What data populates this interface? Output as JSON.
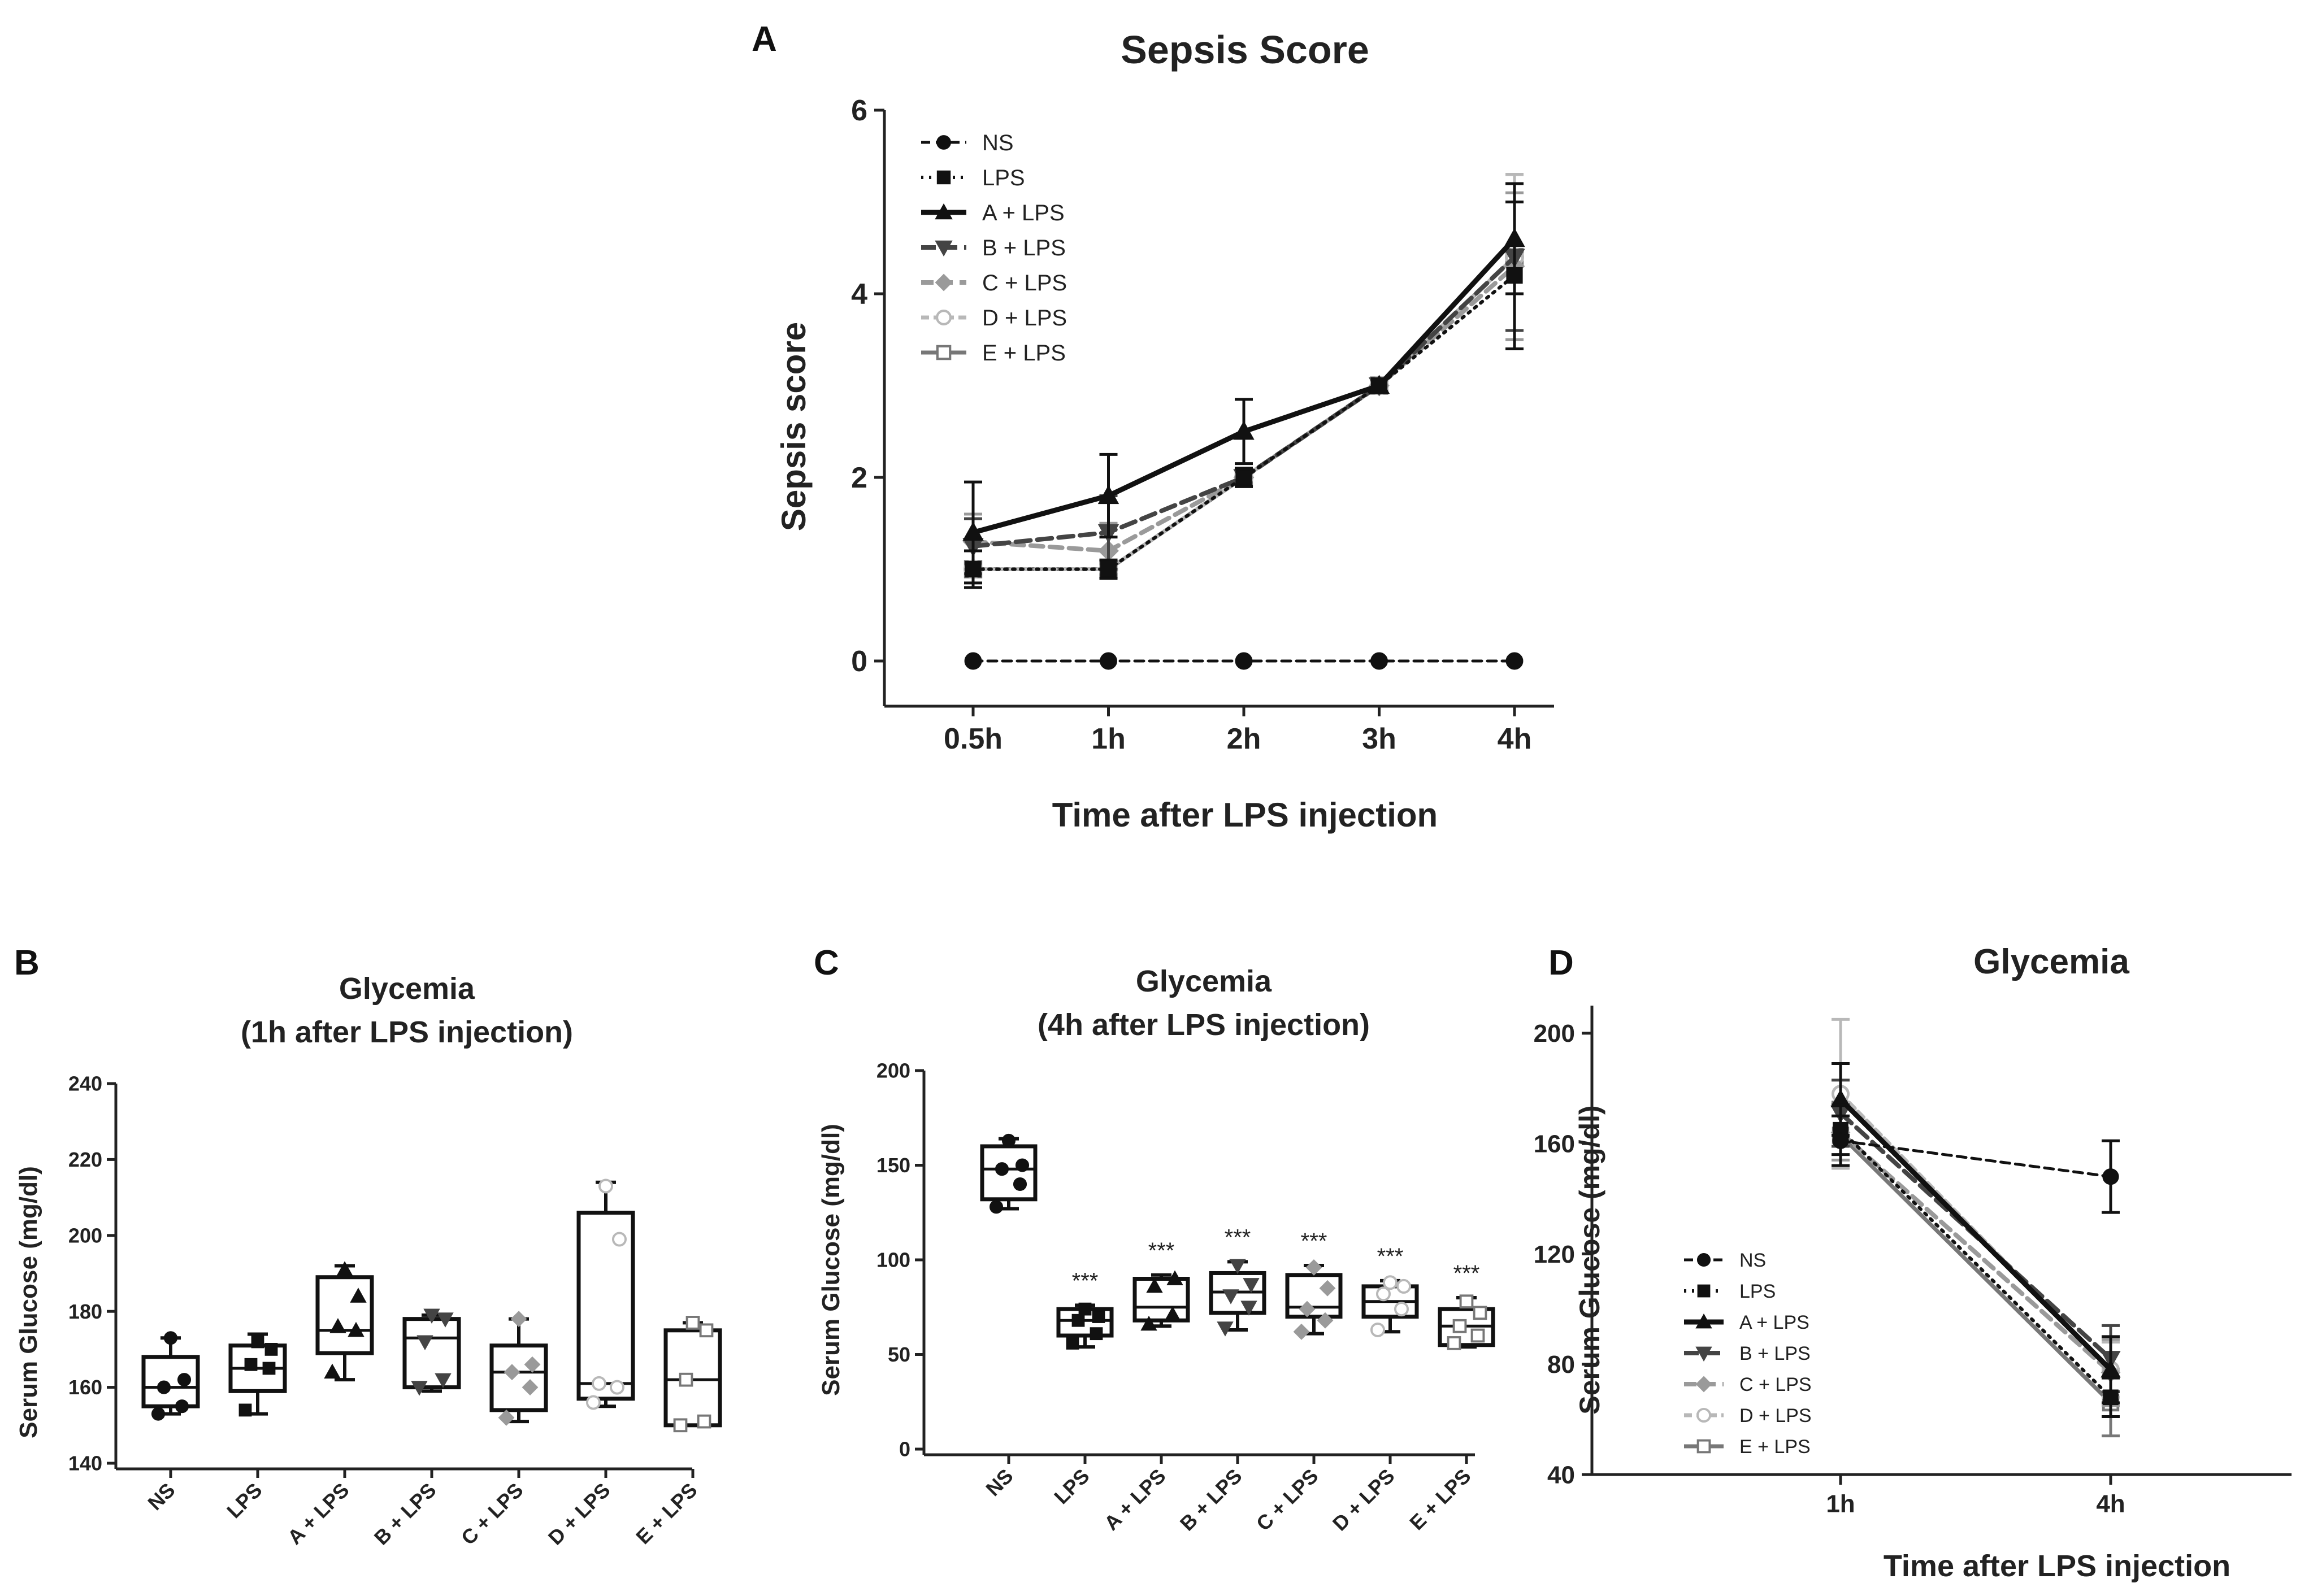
{
  "panels": {
    "A": {
      "letter": "A"
    },
    "B": {
      "letter": "B"
    },
    "C": {
      "letter": "C"
    },
    "D": {
      "letter": "D"
    }
  },
  "colors": {
    "NS": "#111111",
    "LPS": "#111111",
    "A + LPS": "#111111",
    "B + LPS": "#444444",
    "C + LPS": "#9a9a9a",
    "D + LPS": "#b8b8b8",
    "E + LPS": "#777777"
  },
  "chart_data": [
    {
      "id": "A",
      "type": "line",
      "title": "Sepsis Score",
      "xlabel": "Time after LPS injection",
      "ylabel": "Sepsis score",
      "categories": [
        "0.5h",
        "1h",
        "2h",
        "3h",
        "4h"
      ],
      "ylim": [
        0,
        6
      ],
      "yticks": [
        0,
        2,
        4,
        6
      ],
      "legend_position": "top-left",
      "series": [
        {
          "name": "NS",
          "marker": "circle",
          "values": [
            0,
            0,
            0,
            0,
            0
          ],
          "errors": [
            0,
            0,
            0,
            0,
            0
          ]
        },
        {
          "name": "LPS",
          "marker": "square",
          "values": [
            1.0,
            1.0,
            2.0,
            3.0,
            4.2
          ],
          "errors": [
            0.2,
            0.1,
            0.1,
            0,
            0.8
          ]
        },
        {
          "name": "A + LPS",
          "marker": "triangle-up",
          "values": [
            1.4,
            1.8,
            2.5,
            3.0,
            4.6
          ],
          "errors": [
            0.55,
            0.45,
            0.35,
            0,
            0.6
          ]
        },
        {
          "name": "B + LPS",
          "marker": "triangle-down",
          "values": [
            1.25,
            1.4,
            2.0,
            3.0,
            4.4
          ],
          "errors": [
            0.3,
            0.4,
            0.1,
            0,
            0.8
          ]
        },
        {
          "name": "C + LPS",
          "marker": "diamond",
          "values": [
            1.3,
            1.2,
            2.0,
            3.0,
            4.3
          ],
          "errors": [
            0.3,
            0.3,
            0.1,
            0,
            0.8
          ]
        },
        {
          "name": "D + LPS",
          "marker": "circle-open",
          "values": [
            1.0,
            1.0,
            2.0,
            3.0,
            4.4
          ],
          "errors": [
            0.2,
            0.1,
            0.1,
            0,
            0.9
          ]
        },
        {
          "name": "E + LPS",
          "marker": "square-open",
          "values": [
            1.0,
            1.0,
            2.0,
            3.0,
            4.4
          ],
          "errors": [
            0.2,
            0.1,
            0.1,
            0,
            0.9
          ]
        }
      ]
    },
    {
      "id": "B",
      "type": "box",
      "title": "Glycemia",
      "subtitle": "(1h after LPS injection)",
      "ylabel": "Serum Glucose (mg/dl)",
      "ylim": [
        140,
        240
      ],
      "yticks": [
        140,
        160,
        180,
        200,
        220,
        240
      ],
      "categories": [
        "NS",
        "LPS",
        "A + LPS",
        "B + LPS",
        "C + LPS",
        "D + LPS",
        "E + LPS"
      ],
      "boxes": [
        {
          "name": "NS",
          "marker": "circle",
          "min": 153,
          "q1": 155,
          "median": 160,
          "q3": 168,
          "max": 173,
          "points": [
            153,
            155,
            160,
            162,
            173
          ]
        },
        {
          "name": "LPS",
          "marker": "square",
          "min": 153,
          "q1": 159,
          "median": 165,
          "q3": 171,
          "max": 174,
          "points": [
            154,
            165,
            166,
            170,
            172
          ]
        },
        {
          "name": "A + LPS",
          "marker": "triangle-up",
          "min": 162,
          "q1": 169,
          "median": 175,
          "q3": 189,
          "max": 192,
          "points": [
            164,
            175,
            176,
            184,
            191
          ]
        },
        {
          "name": "B + LPS",
          "marker": "triangle-down",
          "min": 159,
          "q1": 160,
          "median": 173,
          "q3": 178,
          "max": 179,
          "points": [
            160,
            162,
            172,
            178,
            179
          ]
        },
        {
          "name": "C + LPS",
          "marker": "diamond",
          "min": 151,
          "q1": 154,
          "median": 164,
          "q3": 171,
          "max": 178,
          "points": [
            152,
            160,
            164,
            166,
            178
          ]
        },
        {
          "name": "D + LPS",
          "marker": "circle-open",
          "min": 155,
          "q1": 157,
          "median": 161,
          "q3": 206,
          "max": 214,
          "points": [
            156,
            160,
            161,
            199,
            213
          ]
        },
        {
          "name": "E + LPS",
          "marker": "square-open",
          "min": 150,
          "q1": 150,
          "median": 162,
          "q3": 175,
          "max": 177,
          "points": [
            150,
            151,
            162,
            175,
            177
          ]
        }
      ]
    },
    {
      "id": "C",
      "type": "box",
      "title": "Glycemia",
      "subtitle": "(4h after LPS injection)",
      "ylabel": "Serum Glucose (mg/dl)",
      "ylim": [
        0,
        200
      ],
      "yticks": [
        0,
        50,
        100,
        150,
        200
      ],
      "categories": [
        "NS",
        "LPS",
        "A + LPS",
        "B + LPS",
        "C + LPS",
        "D + LPS",
        "E + LPS"
      ],
      "significance": [
        "",
        "***",
        "***",
        "***",
        "***",
        "***",
        "***"
      ],
      "boxes": [
        {
          "name": "NS",
          "marker": "circle",
          "min": 127,
          "q1": 132,
          "median": 148,
          "q3": 160,
          "max": 164,
          "points": [
            128,
            140,
            148,
            150,
            163
          ]
        },
        {
          "name": "LPS",
          "marker": "square",
          "min": 54,
          "q1": 60,
          "median": 68,
          "q3": 74,
          "max": 76,
          "points": [
            56,
            61,
            68,
            70,
            74
          ]
        },
        {
          "name": "A + LPS",
          "marker": "triangle-up",
          "min": 65,
          "q1": 68,
          "median": 75,
          "q3": 90,
          "max": 92,
          "points": [
            66,
            71,
            86,
            90
          ]
        },
        {
          "name": "B + LPS",
          "marker": "triangle-down",
          "min": 63,
          "q1": 72,
          "median": 83,
          "q3": 93,
          "max": 99,
          "points": [
            64,
            75,
            81,
            87,
            97
          ]
        },
        {
          "name": "C + LPS",
          "marker": "diamond",
          "min": 61,
          "q1": 70,
          "median": 75,
          "q3": 92,
          "max": 97,
          "points": [
            62,
            68,
            74,
            85,
            96
          ]
        },
        {
          "name": "D + LPS",
          "marker": "circle-open",
          "min": 62,
          "q1": 70,
          "median": 78,
          "q3": 86,
          "max": 89,
          "points": [
            63,
            74,
            82,
            86,
            88
          ]
        },
        {
          "name": "E + LPS",
          "marker": "square-open",
          "min": 54,
          "q1": 55,
          "median": 65,
          "q3": 74,
          "max": 80,
          "points": [
            56,
            60,
            65,
            72,
            78
          ]
        }
      ]
    },
    {
      "id": "D",
      "type": "line",
      "title": "Glycemia",
      "xlabel": "Time after LPS injection",
      "ylabel": "Serum Glucose (mg/dl)",
      "categories": [
        "1h",
        "4h"
      ],
      "ylim": [
        40,
        210
      ],
      "yticks": [
        40,
        80,
        120,
        160,
        200
      ],
      "legend_position": "bottom-left",
      "series": [
        {
          "name": "NS",
          "marker": "circle",
          "values": [
            161,
            148
          ],
          "errors": [
            9,
            13
          ]
        },
        {
          "name": "LPS",
          "marker": "square",
          "values": [
            165,
            68
          ],
          "errors": [
            9,
            7
          ]
        },
        {
          "name": "A + LPS",
          "marker": "triangle-up",
          "values": [
            176,
            78
          ],
          "errors": [
            13,
            12
          ]
        },
        {
          "name": "B + LPS",
          "marker": "triangle-down",
          "values": [
            171,
            82
          ],
          "errors": [
            12,
            12
          ]
        },
        {
          "name": "C + LPS",
          "marker": "diamond",
          "values": [
            164,
            77
          ],
          "errors": [
            10,
            12
          ]
        },
        {
          "name": "D + LPS",
          "marker": "circle-open",
          "values": [
            178,
            78
          ],
          "errors": [
            27,
            10
          ]
        },
        {
          "name": "E + LPS",
          "marker": "square-open",
          "values": [
            163,
            66
          ],
          "errors": [
            12,
            12
          ]
        }
      ]
    }
  ]
}
